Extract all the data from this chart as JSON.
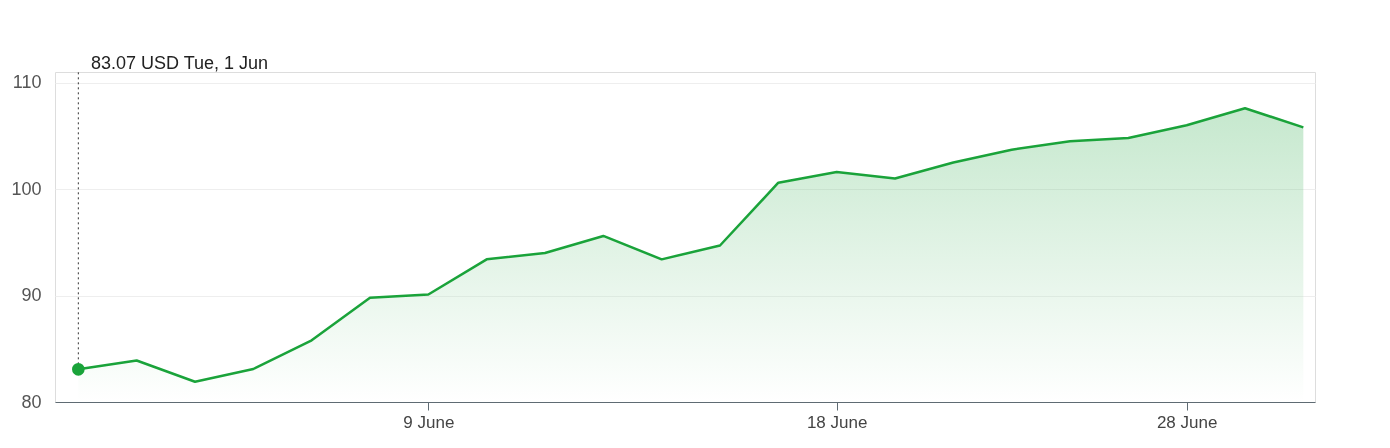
{
  "chart_data": {
    "type": "area",
    "categories": [
      null,
      null,
      null,
      null,
      null,
      null,
      "9 June",
      null,
      null,
      null,
      null,
      null,
      null,
      "18 June",
      null,
      null,
      null,
      null,
      null,
      "28 June",
      null,
      null
    ],
    "series": [
      {
        "color": "#1aa33a",
        "values": [
          83.07,
          83.9,
          81.9,
          83.1,
          85.8,
          89.8,
          90.1,
          93.4,
          94.0,
          95.6,
          93.4,
          94.7,
          100.6,
          101.6,
          101.0,
          102.5,
          103.7,
          104.5,
          104.8,
          106.0,
          107.6,
          105.8
        ]
      }
    ],
    "ylim": [
      80,
      111
    ],
    "yticks": [
      80,
      90,
      100,
      110
    ],
    "grid": "y",
    "marker": "none",
    "line_style": "solid",
    "annotations": [
      "83.07 USD  Tue, 1 Jun"
    ]
  }
}
